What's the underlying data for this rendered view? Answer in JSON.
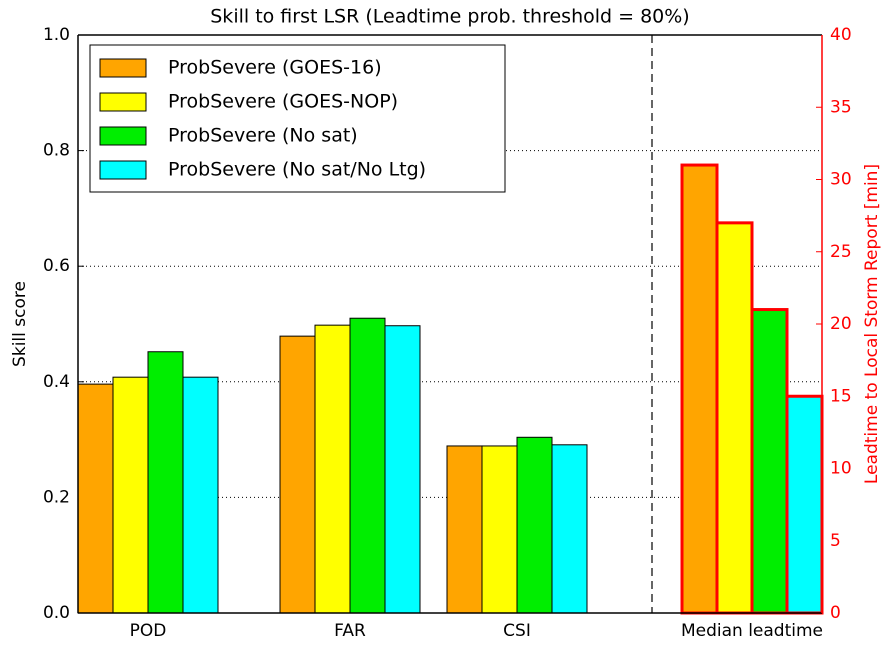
{
  "chart_data": {
    "type": "bar",
    "title": "Skill to first LSR (Leadtime prob. threshold = 80%)",
    "ylabel": "Skill score",
    "y2label": "Leadtime to Local Storm Report [min]",
    "categories": [
      "POD",
      "FAR",
      "CSI"
    ],
    "y2_category": "Median leadtime",
    "series": [
      {
        "name": "ProbSevere (GOES-16)",
        "color": "#ffa500",
        "values": [
          0.396,
          0.479,
          0.289
        ],
        "y2_value": 31
      },
      {
        "name": "ProbSevere (GOES-NOP)",
        "color": "#ffff00",
        "values": [
          0.408,
          0.498,
          0.289
        ],
        "y2_value": 27
      },
      {
        "name": "ProbSevere (No sat)",
        "color": "#00ee00",
        "values": [
          0.452,
          0.51,
          0.304
        ],
        "y2_value": 21
      },
      {
        "name": "ProbSevere (No sat/No Ltg)",
        "color": "#00ffff",
        "values": [
          0.408,
          0.497,
          0.291
        ],
        "y2_value": 15
      }
    ],
    "y2_edge_color": "#ff0000",
    "ylim": [
      0,
      1
    ],
    "yticks": [
      {
        "value": 0,
        "label": "0.0"
      },
      0.2,
      0.4,
      0.6,
      0.8,
      {
        "value": 1,
        "label": "1.0"
      }
    ],
    "y2lim": [
      0,
      40
    ],
    "y2ticks": [
      0,
      5,
      10,
      15,
      20,
      25,
      30,
      35,
      40
    ],
    "grid": true,
    "legend": "upper left"
  }
}
